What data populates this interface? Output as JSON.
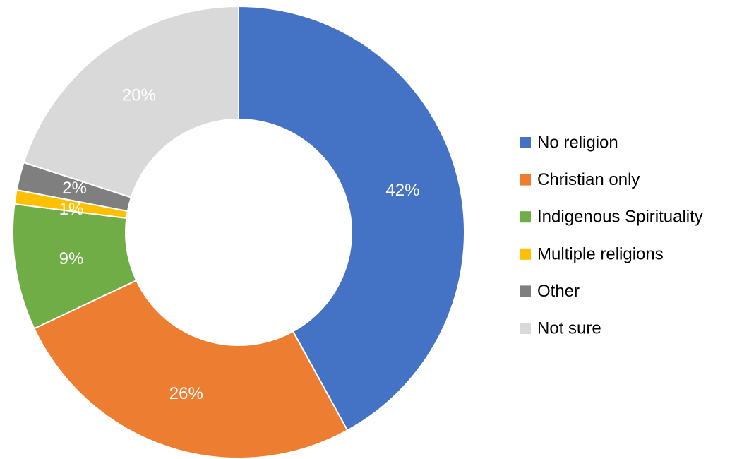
{
  "chart_data": {
    "type": "pie",
    "variant": "donut",
    "title": "",
    "legend_position": "right",
    "start_angle_deg": 0,
    "direction": "clockwise",
    "slices": [
      {
        "name": "No religion",
        "value": 42,
        "label": "42%",
        "color": "#4472C4"
      },
      {
        "name": "Christian only",
        "value": 26,
        "label": "26%",
        "color": "#ED7D31"
      },
      {
        "name": "Indigenous Spirituality",
        "value": 9,
        "label": "9%",
        "color": "#70AD47"
      },
      {
        "name": "Multiple religions",
        "value": 1,
        "label": "1%",
        "color": "#FFC000"
      },
      {
        "name": "Other",
        "value": 2,
        "label": "2%",
        "color": "#7F7F7F"
      },
      {
        "name": "Not sure",
        "value": 20,
        "label": "20%",
        "color": "#D9D9D9"
      }
    ]
  }
}
